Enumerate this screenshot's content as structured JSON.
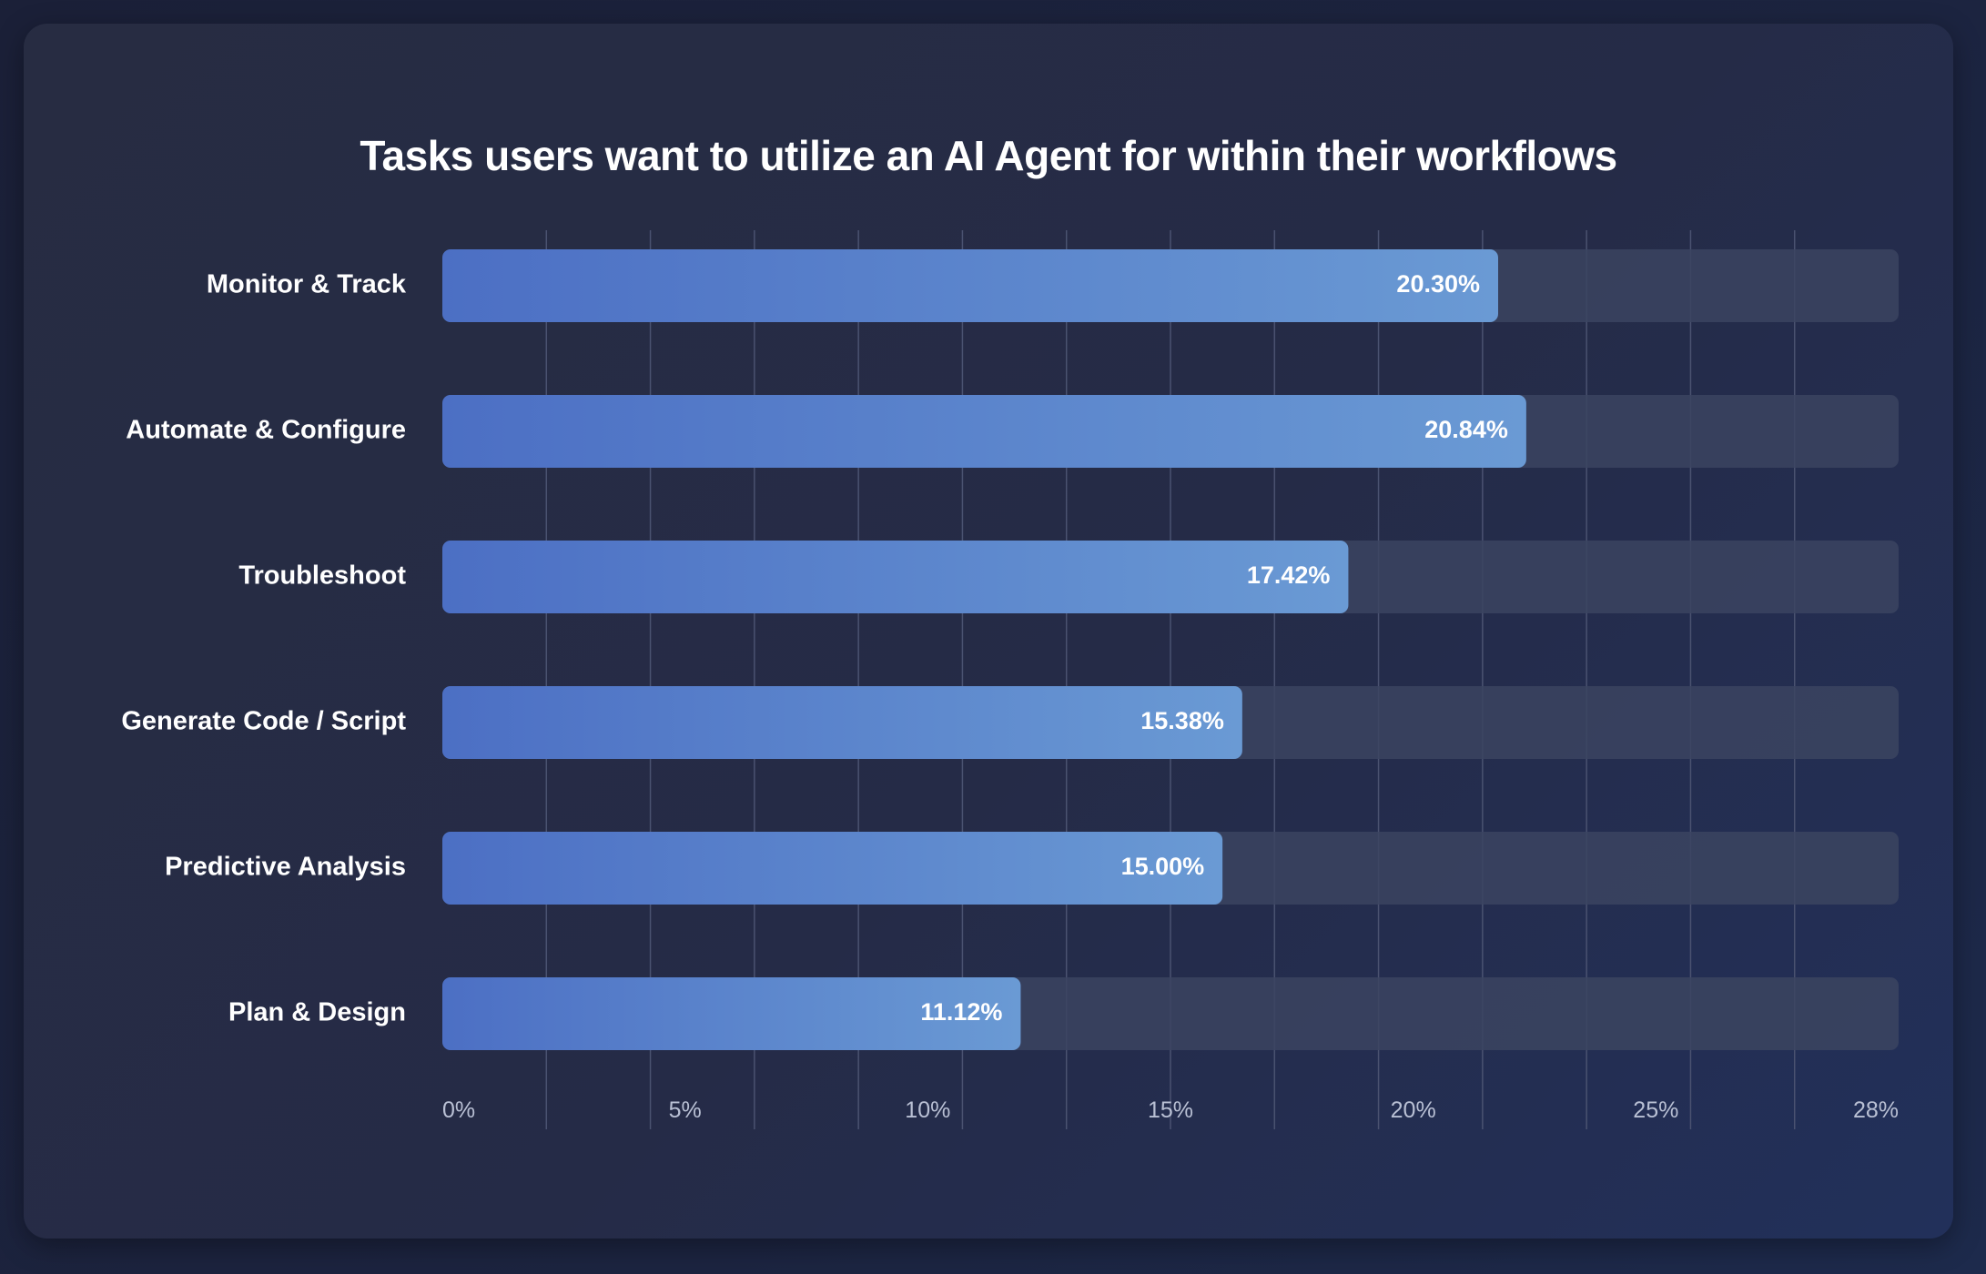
{
  "chart_data": {
    "type": "bar",
    "orientation": "horizontal",
    "title": "Tasks users want to utilize an AI Agent for within their workflows",
    "categories": [
      "Monitor & Track",
      "Automate & Configure",
      "Troubleshoot",
      "Generate Code / Script",
      "Predictive Analysis",
      "Plan & Design"
    ],
    "values": [
      20.3,
      20.84,
      17.42,
      15.38,
      15.0,
      11.12
    ],
    "value_labels": [
      "20.30%",
      "20.84%",
      "17.42%",
      "15.38%",
      "15.00%",
      "11.12%"
    ],
    "xlim": [
      0,
      28
    ],
    "x_ticks": [
      "0%",
      "5%",
      "10%",
      "15%",
      "20%",
      "25%",
      "28%"
    ],
    "grid": true,
    "colors": {
      "bar_start": "#4c6fc4",
      "bar_end": "#6a9ad4",
      "track": "#3b4460",
      "grid": "#4a5270"
    }
  }
}
